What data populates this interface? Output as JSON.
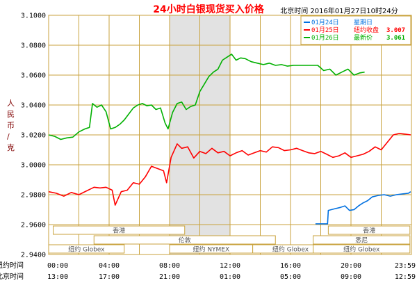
{
  "header": {
    "title": "24小时白银现货买入价格",
    "timestamp": "北京时间  2016年01月27日10时24分"
  },
  "chart_data": {
    "type": "line",
    "y_ticks": [
      "3.1000",
      "3.0800",
      "3.0600",
      "3.0400",
      "3.0200",
      "3.0000",
      "2.9800",
      "2.9600",
      "2.9400"
    ],
    "ylim": [
      2.94,
      3.1
    ],
    "ylabel": "人民币/克",
    "x_row_labels": [
      "纽约时间",
      "北京时间"
    ],
    "x_ticks_newyork": [
      "00:00",
      "04:00",
      "08:00",
      "12:00",
      "16:00",
      "20:00",
      "23:59"
    ],
    "x_ticks_beijing": [
      "13:00",
      "17:00",
      "21:00",
      "01:00",
      "05:00",
      "09:00",
      "12:59"
    ],
    "x_range_hours": [
      0,
      24
    ],
    "shaded_band_hours": [
      8,
      12
    ],
    "legend": [
      {
        "date": "01月24日",
        "note": "星期日",
        "value": "",
        "color": "#0070e0"
      },
      {
        "date": "01月25日",
        "note": "纽约收盘",
        "value": "3.007",
        "color": "#ff0000"
      },
      {
        "date": "01月26日",
        "note": "最新价",
        "value": "3.061",
        "color": "#00b000"
      }
    ],
    "sessions": [
      {
        "label": "香港",
        "row": 0,
        "start_h": 0.3,
        "end_h": 9.0
      },
      {
        "label": "伦敦",
        "row": 1,
        "start_h": 3.0,
        "end_h": 15.0
      },
      {
        "label": "纽约 Globex",
        "row": 2,
        "start_h": 0.0,
        "end_h": 5.0
      },
      {
        "label": "纽约 NYMEX",
        "row": 2,
        "start_h": 8.0,
        "end_h": 13.5
      },
      {
        "label": "纽约 Globex",
        "row": 2,
        "start_h": 13.5,
        "end_h": 18.5
      },
      {
        "label": "香港",
        "row": 0,
        "start_h": 18.5,
        "end_h": 23.9
      },
      {
        "label": "悉尼",
        "row": 1,
        "start_h": 17.5,
        "end_h": 23.9
      },
      {
        "label": "纽约 Globex",
        "row": 2,
        "start_h": 17.5,
        "end_h": 23.9
      }
    ],
    "series": [
      {
        "name": "01月24日",
        "color": "#0070e0",
        "x": [
          17.65,
          18.0,
          18.45,
          18.5,
          18.9,
          19.3,
          19.6,
          19.9,
          20.2,
          20.5,
          20.8,
          21.1,
          21.4,
          21.8,
          22.2,
          22.6,
          23.0,
          23.4,
          23.8,
          23.95
        ],
        "y": [
          2.9605,
          2.9605,
          2.9605,
          2.9695,
          2.9705,
          2.9715,
          2.9725,
          2.9695,
          2.97,
          2.9725,
          2.9745,
          2.976,
          2.9785,
          2.9795,
          2.98,
          2.979,
          2.98,
          2.9805,
          2.981,
          2.982
        ]
      },
      {
        "name": "01月25日",
        "color": "#ff0000",
        "x": [
          0,
          0.5,
          1.0,
          1.5,
          2.0,
          2.5,
          3.0,
          3.4,
          3.8,
          4.2,
          4.4,
          4.8,
          5.2,
          5.6,
          6.0,
          6.4,
          6.8,
          7.2,
          7.6,
          7.8,
          8.1,
          8.5,
          8.8,
          9.2,
          9.6,
          10.0,
          10.4,
          10.8,
          11.2,
          11.6,
          12.0,
          12.4,
          12.8,
          13.2,
          13.6,
          14.0,
          14.4,
          14.8,
          15.2,
          15.6,
          16.0,
          16.4,
          16.8,
          17.2,
          17.6,
          18.0,
          18.4,
          18.8,
          19.2,
          19.6,
          20.0,
          20.4,
          20.8,
          21.2,
          21.6,
          22.0,
          22.4,
          22.8,
          23.2,
          23.6,
          23.95
        ],
        "y": [
          2.982,
          2.981,
          2.979,
          2.9815,
          2.98,
          2.9825,
          2.985,
          2.9845,
          2.985,
          2.983,
          2.973,
          2.982,
          2.983,
          2.988,
          2.987,
          2.992,
          2.999,
          2.9975,
          2.996,
          2.988,
          3.005,
          3.014,
          3.011,
          3.012,
          3.0045,
          3.009,
          3.0075,
          3.011,
          3.008,
          3.009,
          3.006,
          3.008,
          3.0095,
          3.0065,
          3.008,
          3.0095,
          3.0085,
          3.012,
          3.0115,
          3.0095,
          3.01,
          3.011,
          3.0095,
          3.008,
          3.0075,
          3.009,
          3.007,
          3.005,
          3.006,
          3.008,
          3.005,
          3.006,
          3.007,
          3.009,
          3.012,
          3.01,
          3.015,
          3.02,
          3.021,
          3.0205,
          3.02
        ]
      },
      {
        "name": "01月26日",
        "color": "#00b000",
        "x": [
          0,
          0.4,
          0.8,
          1.2,
          1.6,
          2.0,
          2.4,
          2.7,
          2.9,
          3.2,
          3.5,
          3.8,
          4.1,
          4.4,
          4.7,
          5.0,
          5.3,
          5.6,
          5.9,
          6.2,
          6.5,
          6.8,
          7.1,
          7.4,
          7.7,
          7.9,
          8.2,
          8.5,
          8.8,
          9.1,
          9.4,
          9.7,
          10.0,
          10.3,
          10.6,
          10.9,
          11.2,
          11.5,
          11.8,
          12.1,
          12.4,
          12.7,
          13.0,
          13.4,
          13.8,
          14.2,
          14.6,
          15.0,
          15.4,
          15.8,
          16.2,
          16.6,
          17.0,
          17.4,
          17.8,
          18.2,
          18.6,
          19.0,
          19.4,
          19.8,
          20.2,
          20.6,
          20.9
        ],
        "y": [
          3.02,
          3.019,
          3.017,
          3.018,
          3.0185,
          3.022,
          3.024,
          3.025,
          3.041,
          3.0385,
          3.04,
          3.0355,
          3.024,
          3.025,
          3.027,
          3.03,
          3.034,
          3.038,
          3.04,
          3.041,
          3.0395,
          3.04,
          3.037,
          3.038,
          3.028,
          3.024,
          3.035,
          3.041,
          3.042,
          3.037,
          3.039,
          3.04,
          3.049,
          3.054,
          3.059,
          3.062,
          3.064,
          3.07,
          3.072,
          3.074,
          3.07,
          3.0715,
          3.071,
          3.069,
          3.068,
          3.067,
          3.068,
          3.0665,
          3.067,
          3.066,
          3.0665,
          3.0665,
          3.0665,
          3.0665,
          3.0665,
          3.063,
          3.064,
          3.06,
          3.062,
          3.064,
          3.06,
          3.0615,
          3.062
        ]
      }
    ]
  }
}
